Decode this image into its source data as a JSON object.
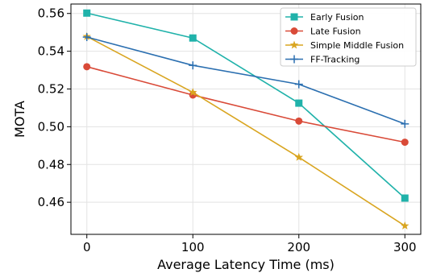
{
  "chart_data": {
    "type": "line",
    "xlabel": "Average Latency Time (ms)",
    "ylabel": "MOTA",
    "x": [
      0,
      100,
      200,
      300
    ],
    "xticks": [
      "0",
      "100",
      "200",
      "300"
    ],
    "xlim": [
      -15,
      315
    ],
    "ylim": [
      0.443,
      0.565
    ],
    "yticks": [
      "0.46",
      "0.48",
      "0.50",
      "0.52",
      "0.54",
      "0.56"
    ],
    "grid": true,
    "legend_position": "top-right",
    "series": [
      {
        "name": "Early Fusion",
        "values": [
          0.5602,
          0.547,
          0.5125,
          0.4622
        ],
        "color": "#20b2aa",
        "marker": "square"
      },
      {
        "name": "Late Fusion",
        "values": [
          0.5318,
          0.5168,
          0.503,
          0.4918
        ],
        "color": "#d94a38",
        "marker": "circle"
      },
      {
        "name": "Simple Middle Fusion",
        "values": [
          0.5478,
          0.5182,
          0.4838,
          0.4475
        ],
        "color": "#d9a520",
        "marker": "star"
      },
      {
        "name": "FF-Tracking",
        "values": [
          0.5475,
          0.5325,
          0.5225,
          0.5015
        ],
        "color": "#2b6fb0",
        "marker": "plus"
      }
    ]
  }
}
